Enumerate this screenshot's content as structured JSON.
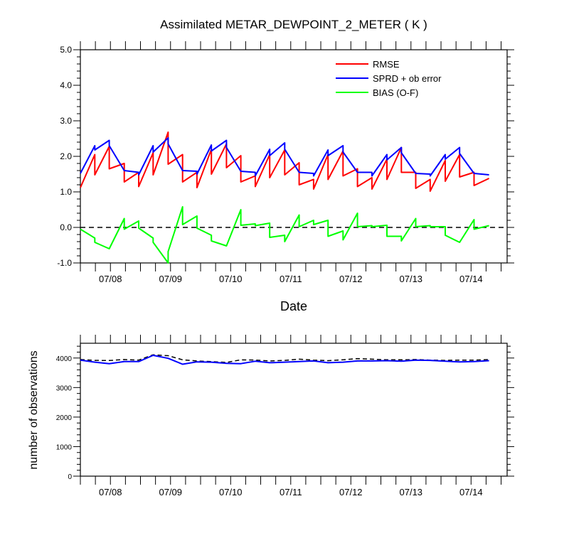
{
  "figure": {
    "title": "Assimilated METAR_DEWPOINT_2_METER ( K )"
  },
  "chart_data": [
    {
      "type": "line",
      "title": "Assimilated METAR_DEWPOINT_2_METER ( K )",
      "xlabel": "Date",
      "ylabel": "",
      "xlim": [
        0,
        7.1
      ],
      "ylim": [
        -1.0,
        5.0
      ],
      "yticks": [
        -1.0,
        0.0,
        1.0,
        2.0,
        3.0,
        4.0,
        5.0
      ],
      "ytick_labels": [
        "-1.0",
        "0.0",
        "1.0",
        "2.0",
        "3.0",
        "4.0",
        "5.0"
      ],
      "xticks": [
        0.5,
        1.5,
        2.5,
        3.5,
        4.5,
        5.5,
        6.5
      ],
      "xtick_labels": [
        "07/08",
        "07/09",
        "07/10",
        "07/11",
        "07/12",
        "07/13",
        "07/14"
      ],
      "legend": {
        "placement": "top-right"
      },
      "reference_line": {
        "y": 0.0,
        "style": "dashed"
      },
      "series": [
        {
          "name": "RMSE",
          "color": "#ff0000",
          "points": [
            [
              0.0,
              1.12
            ],
            [
              0.24,
              2.05
            ],
            [
              0.24,
              1.48
            ],
            [
              0.48,
              2.28
            ],
            [
              0.48,
              1.65
            ],
            [
              0.73,
              1.8
            ],
            [
              0.73,
              1.28
            ],
            [
              0.97,
              1.55
            ],
            [
              0.97,
              1.15
            ],
            [
              1.21,
              2.1
            ],
            [
              1.21,
              1.48
            ],
            [
              1.46,
              2.68
            ],
            [
              1.46,
              1.78
            ],
            [
              1.7,
              2.05
            ],
            [
              1.7,
              1.28
            ],
            [
              1.94,
              1.55
            ],
            [
              1.94,
              1.12
            ],
            [
              2.18,
              2.2
            ],
            [
              2.18,
              1.5
            ],
            [
              2.43,
              2.35
            ],
            [
              2.43,
              1.68
            ],
            [
              2.67,
              2.02
            ],
            [
              2.67,
              1.28
            ],
            [
              2.91,
              1.45
            ],
            [
              2.91,
              1.15
            ],
            [
              3.15,
              2.05
            ],
            [
              3.15,
              1.4
            ],
            [
              3.4,
              2.18
            ],
            [
              3.4,
              1.48
            ],
            [
              3.64,
              1.82
            ],
            [
              3.64,
              1.2
            ],
            [
              3.88,
              1.35
            ],
            [
              3.88,
              1.08
            ],
            [
              4.12,
              2.05
            ],
            [
              4.12,
              1.35
            ],
            [
              4.37,
              2.15
            ],
            [
              4.37,
              1.45
            ],
            [
              4.61,
              1.65
            ],
            [
              4.61,
              1.15
            ],
            [
              4.85,
              1.4
            ],
            [
              4.85,
              1.08
            ],
            [
              5.1,
              1.92
            ],
            [
              5.1,
              1.35
            ],
            [
              5.34,
              2.25
            ],
            [
              5.34,
              1.55
            ],
            [
              5.58,
              1.55
            ],
            [
              5.58,
              1.1
            ],
            [
              5.82,
              1.35
            ],
            [
              5.82,
              1.02
            ],
            [
              6.07,
              1.88
            ],
            [
              6.07,
              1.3
            ],
            [
              6.31,
              2.05
            ],
            [
              6.31,
              1.42
            ],
            [
              6.55,
              1.55
            ],
            [
              6.55,
              1.18
            ],
            [
              6.8,
              1.38
            ]
          ]
        },
        {
          "name": "SPRD + ob error",
          "color": "#0000ff",
          "points": [
            [
              0.0,
              1.52
            ],
            [
              0.24,
              2.3
            ],
            [
              0.24,
              2.18
            ],
            [
              0.48,
              2.45
            ],
            [
              0.48,
              2.3
            ],
            [
              0.73,
              1.6
            ],
            [
              0.97,
              1.55
            ],
            [
              0.97,
              1.48
            ],
            [
              1.21,
              2.3
            ],
            [
              1.21,
              2.12
            ],
            [
              1.46,
              2.52
            ],
            [
              1.46,
              2.35
            ],
            [
              1.7,
              1.6
            ],
            [
              1.94,
              1.58
            ],
            [
              1.94,
              1.5
            ],
            [
              2.18,
              2.32
            ],
            [
              2.18,
              2.15
            ],
            [
              2.43,
              2.45
            ],
            [
              2.43,
              2.25
            ],
            [
              2.67,
              1.58
            ],
            [
              2.91,
              1.55
            ],
            [
              2.91,
              1.45
            ],
            [
              3.15,
              2.2
            ],
            [
              3.15,
              2.02
            ],
            [
              3.4,
              2.38
            ],
            [
              3.4,
              2.2
            ],
            [
              3.64,
              1.55
            ],
            [
              3.88,
              1.52
            ],
            [
              3.88,
              1.45
            ],
            [
              4.12,
              2.18
            ],
            [
              4.12,
              2.02
            ],
            [
              4.37,
              2.3
            ],
            [
              4.37,
              2.12
            ],
            [
              4.61,
              1.55
            ],
            [
              4.85,
              1.55
            ],
            [
              4.85,
              1.45
            ],
            [
              5.1,
              2.05
            ],
            [
              5.1,
              1.9
            ],
            [
              5.34,
              2.25
            ],
            [
              5.34,
              2.1
            ],
            [
              5.58,
              1.52
            ],
            [
              5.82,
              1.5
            ],
            [
              5.82,
              1.45
            ],
            [
              6.07,
              2.05
            ],
            [
              6.07,
              1.92
            ],
            [
              6.31,
              2.25
            ],
            [
              6.31,
              2.08
            ],
            [
              6.55,
              1.52
            ],
            [
              6.8,
              1.48
            ]
          ]
        },
        {
          "name": "BIAS (O-F)",
          "color": "#00ff00",
          "points": [
            [
              0.0,
              -0.05
            ],
            [
              0.24,
              -0.3
            ],
            [
              0.24,
              -0.42
            ],
            [
              0.48,
              -0.6
            ],
            [
              0.73,
              0.25
            ],
            [
              0.73,
              -0.05
            ],
            [
              0.97,
              0.18
            ],
            [
              0.97,
              -0.02
            ],
            [
              1.21,
              -0.3
            ],
            [
              1.21,
              -0.42
            ],
            [
              1.46,
              -1.0
            ],
            [
              1.46,
              -0.68
            ],
            [
              1.7,
              0.58
            ],
            [
              1.7,
              0.08
            ],
            [
              1.94,
              0.32
            ],
            [
              1.94,
              -0.02
            ],
            [
              2.18,
              -0.22
            ],
            [
              2.18,
              -0.38
            ],
            [
              2.43,
              -0.52
            ],
            [
              2.67,
              0.5
            ],
            [
              2.67,
              0.06
            ],
            [
              2.91,
              0.1
            ],
            [
              2.91,
              0.05
            ],
            [
              3.15,
              0.12
            ],
            [
              3.15,
              -0.28
            ],
            [
              3.4,
              -0.22
            ],
            [
              3.4,
              -0.4
            ],
            [
              3.64,
              0.35
            ],
            [
              3.64,
              0.02
            ],
            [
              3.88,
              0.2
            ],
            [
              3.88,
              0.08
            ],
            [
              4.12,
              0.2
            ],
            [
              4.12,
              -0.25
            ],
            [
              4.37,
              -0.1
            ],
            [
              4.37,
              -0.35
            ],
            [
              4.61,
              0.4
            ],
            [
              4.61,
              0.02
            ],
            [
              4.85,
              0.05
            ],
            [
              4.85,
              0.02
            ],
            [
              5.1,
              0.06
            ],
            [
              5.1,
              -0.25
            ],
            [
              5.34,
              -0.25
            ],
            [
              5.34,
              -0.38
            ],
            [
              5.58,
              0.25
            ],
            [
              5.58,
              0.02
            ],
            [
              5.82,
              0.05
            ],
            [
              5.82,
              0.02
            ],
            [
              6.07,
              0.02
            ],
            [
              6.07,
              -0.22
            ],
            [
              6.31,
              -0.42
            ],
            [
              6.55,
              0.22
            ],
            [
              6.55,
              -0.05
            ],
            [
              6.8,
              0.05
            ]
          ]
        }
      ]
    },
    {
      "type": "line",
      "title": "",
      "xlabel": "",
      "ylabel": "number of observations",
      "xlim": [
        0,
        7.1
      ],
      "ylim": [
        0,
        4500
      ],
      "yticks": [
        0,
        1000,
        2000,
        3000,
        4000
      ],
      "ytick_labels": [
        "0",
        "1000",
        "2000",
        "3000",
        "4000"
      ],
      "xticks": [
        0.5,
        1.5,
        2.5,
        3.5,
        4.5,
        5.5,
        6.5
      ],
      "xtick_labels": [
        "07/08",
        "07/09",
        "07/10",
        "07/11",
        "07/12",
        "07/13",
        "07/14"
      ],
      "series": [
        {
          "color": "#000000",
          "style": "dashed",
          "points": [
            [
              0.0,
              3950
            ],
            [
              0.24,
              3920
            ],
            [
              0.48,
              3915
            ],
            [
              0.73,
              3950
            ],
            [
              0.97,
              3930
            ],
            [
              1.21,
              4110
            ],
            [
              1.46,
              4080
            ],
            [
              1.7,
              3940
            ],
            [
              1.94,
              3900
            ],
            [
              2.18,
              3880
            ],
            [
              2.43,
              3850
            ],
            [
              2.67,
              3940
            ],
            [
              2.91,
              3930
            ],
            [
              3.15,
              3900
            ],
            [
              3.4,
              3920
            ],
            [
              3.64,
              3960
            ],
            [
              3.88,
              3930
            ],
            [
              4.12,
              3910
            ],
            [
              4.37,
              3940
            ],
            [
              4.61,
              3980
            ],
            [
              4.85,
              3960
            ],
            [
              5.1,
              3940
            ],
            [
              5.34,
              3940
            ],
            [
              5.58,
              3950
            ],
            [
              5.82,
              3930
            ],
            [
              6.07,
              3920
            ],
            [
              6.31,
              3930
            ],
            [
              6.55,
              3930
            ],
            [
              6.8,
              3950
            ]
          ]
        },
        {
          "color": "#0000ff",
          "points": [
            [
              0.0,
              3930
            ],
            [
              0.24,
              3860
            ],
            [
              0.48,
              3810
            ],
            [
              0.73,
              3880
            ],
            [
              0.97,
              3880
            ],
            [
              1.21,
              4090
            ],
            [
              1.46,
              3990
            ],
            [
              1.7,
              3790
            ],
            [
              1.94,
              3870
            ],
            [
              2.18,
              3860
            ],
            [
              2.43,
              3820
            ],
            [
              2.67,
              3810
            ],
            [
              2.91,
              3890
            ],
            [
              3.15,
              3840
            ],
            [
              3.4,
              3860
            ],
            [
              3.64,
              3880
            ],
            [
              3.88,
              3900
            ],
            [
              4.12,
              3840
            ],
            [
              4.37,
              3860
            ],
            [
              4.61,
              3900
            ],
            [
              4.85,
              3900
            ],
            [
              5.1,
              3910
            ],
            [
              5.34,
              3890
            ],
            [
              5.58,
              3930
            ],
            [
              5.82,
              3920
            ],
            [
              6.07,
              3890
            ],
            [
              6.31,
              3870
            ],
            [
              6.55,
              3880
            ],
            [
              6.8,
              3910
            ]
          ]
        }
      ]
    }
  ]
}
